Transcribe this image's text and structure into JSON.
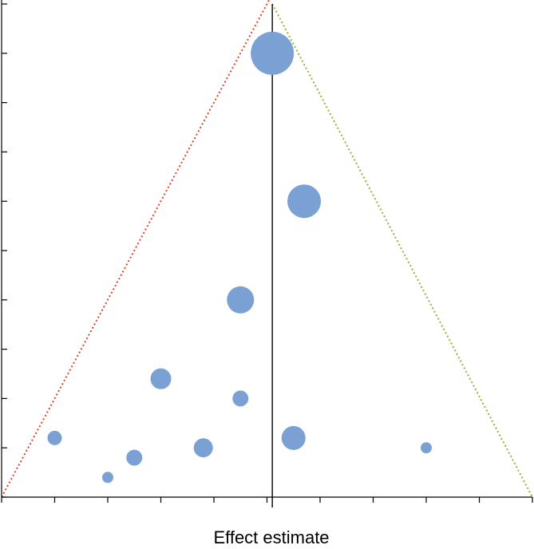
{
  "chart_data": {
    "type": "scatter",
    "x_label": "Effect estimate",
    "x": [
      5.1,
      5.7,
      4.5,
      3.0,
      4.5,
      1.0,
      5.5,
      3.8,
      2.5,
      2.0,
      8.0
    ],
    "values": [
      9,
      6,
      4,
      2.4,
      2,
      1.2,
      1.2,
      1,
      0.8,
      0.4,
      1
    ],
    "sizes": [
      27,
      21,
      17,
      13,
      10,
      9,
      15,
      12,
      10,
      7,
      7
    ],
    "color": "#7ba1d4",
    "center": 5.1,
    "xlim": [
      0,
      10
    ],
    "ylim": [
      0,
      10
    ],
    "xticks": [
      0,
      1,
      2,
      3,
      4,
      5,
      6,
      7,
      8,
      9,
      10
    ],
    "yticks": [
      0,
      1,
      2,
      3,
      4,
      5,
      6,
      7,
      8,
      9,
      10
    ]
  }
}
